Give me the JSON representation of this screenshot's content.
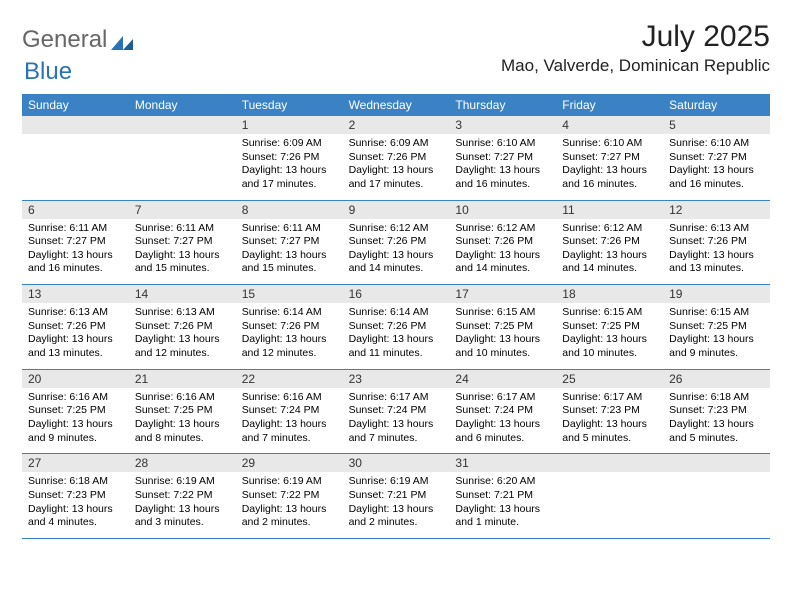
{
  "logo": {
    "part1": "General",
    "part2": "Blue"
  },
  "title": "July 2025",
  "location": "Mao, Valverde, Dominican Republic",
  "colors": {
    "header_bg": "#3b82c4",
    "header_text": "#ffffff",
    "daynum_bg": "#e8e8e8",
    "week_border": "#3b82c4",
    "background": "#ffffff",
    "text": "#000000"
  },
  "day_names": [
    "Sunday",
    "Monday",
    "Tuesday",
    "Wednesday",
    "Thursday",
    "Friday",
    "Saturday"
  ],
  "weeks": [
    [
      {
        "n": "",
        "sunrise": "",
        "sunset": "",
        "daylight": ""
      },
      {
        "n": "",
        "sunrise": "",
        "sunset": "",
        "daylight": ""
      },
      {
        "n": "1",
        "sunrise": "Sunrise: 6:09 AM",
        "sunset": "Sunset: 7:26 PM",
        "daylight": "Daylight: 13 hours and 17 minutes."
      },
      {
        "n": "2",
        "sunrise": "Sunrise: 6:09 AM",
        "sunset": "Sunset: 7:26 PM",
        "daylight": "Daylight: 13 hours and 17 minutes."
      },
      {
        "n": "3",
        "sunrise": "Sunrise: 6:10 AM",
        "sunset": "Sunset: 7:27 PM",
        "daylight": "Daylight: 13 hours and 16 minutes."
      },
      {
        "n": "4",
        "sunrise": "Sunrise: 6:10 AM",
        "sunset": "Sunset: 7:27 PM",
        "daylight": "Daylight: 13 hours and 16 minutes."
      },
      {
        "n": "5",
        "sunrise": "Sunrise: 6:10 AM",
        "sunset": "Sunset: 7:27 PM",
        "daylight": "Daylight: 13 hours and 16 minutes."
      }
    ],
    [
      {
        "n": "6",
        "sunrise": "Sunrise: 6:11 AM",
        "sunset": "Sunset: 7:27 PM",
        "daylight": "Daylight: 13 hours and 16 minutes."
      },
      {
        "n": "7",
        "sunrise": "Sunrise: 6:11 AM",
        "sunset": "Sunset: 7:27 PM",
        "daylight": "Daylight: 13 hours and 15 minutes."
      },
      {
        "n": "8",
        "sunrise": "Sunrise: 6:11 AM",
        "sunset": "Sunset: 7:27 PM",
        "daylight": "Daylight: 13 hours and 15 minutes."
      },
      {
        "n": "9",
        "sunrise": "Sunrise: 6:12 AM",
        "sunset": "Sunset: 7:26 PM",
        "daylight": "Daylight: 13 hours and 14 minutes."
      },
      {
        "n": "10",
        "sunrise": "Sunrise: 6:12 AM",
        "sunset": "Sunset: 7:26 PM",
        "daylight": "Daylight: 13 hours and 14 minutes."
      },
      {
        "n": "11",
        "sunrise": "Sunrise: 6:12 AM",
        "sunset": "Sunset: 7:26 PM",
        "daylight": "Daylight: 13 hours and 14 minutes."
      },
      {
        "n": "12",
        "sunrise": "Sunrise: 6:13 AM",
        "sunset": "Sunset: 7:26 PM",
        "daylight": "Daylight: 13 hours and 13 minutes."
      }
    ],
    [
      {
        "n": "13",
        "sunrise": "Sunrise: 6:13 AM",
        "sunset": "Sunset: 7:26 PM",
        "daylight": "Daylight: 13 hours and 13 minutes."
      },
      {
        "n": "14",
        "sunrise": "Sunrise: 6:13 AM",
        "sunset": "Sunset: 7:26 PM",
        "daylight": "Daylight: 13 hours and 12 minutes."
      },
      {
        "n": "15",
        "sunrise": "Sunrise: 6:14 AM",
        "sunset": "Sunset: 7:26 PM",
        "daylight": "Daylight: 13 hours and 12 minutes."
      },
      {
        "n": "16",
        "sunrise": "Sunrise: 6:14 AM",
        "sunset": "Sunset: 7:26 PM",
        "daylight": "Daylight: 13 hours and 11 minutes."
      },
      {
        "n": "17",
        "sunrise": "Sunrise: 6:15 AM",
        "sunset": "Sunset: 7:25 PM",
        "daylight": "Daylight: 13 hours and 10 minutes."
      },
      {
        "n": "18",
        "sunrise": "Sunrise: 6:15 AM",
        "sunset": "Sunset: 7:25 PM",
        "daylight": "Daylight: 13 hours and 10 minutes."
      },
      {
        "n": "19",
        "sunrise": "Sunrise: 6:15 AM",
        "sunset": "Sunset: 7:25 PM",
        "daylight": "Daylight: 13 hours and 9 minutes."
      }
    ],
    [
      {
        "n": "20",
        "sunrise": "Sunrise: 6:16 AM",
        "sunset": "Sunset: 7:25 PM",
        "daylight": "Daylight: 13 hours and 9 minutes."
      },
      {
        "n": "21",
        "sunrise": "Sunrise: 6:16 AM",
        "sunset": "Sunset: 7:25 PM",
        "daylight": "Daylight: 13 hours and 8 minutes."
      },
      {
        "n": "22",
        "sunrise": "Sunrise: 6:16 AM",
        "sunset": "Sunset: 7:24 PM",
        "daylight": "Daylight: 13 hours and 7 minutes."
      },
      {
        "n": "23",
        "sunrise": "Sunrise: 6:17 AM",
        "sunset": "Sunset: 7:24 PM",
        "daylight": "Daylight: 13 hours and 7 minutes."
      },
      {
        "n": "24",
        "sunrise": "Sunrise: 6:17 AM",
        "sunset": "Sunset: 7:24 PM",
        "daylight": "Daylight: 13 hours and 6 minutes."
      },
      {
        "n": "25",
        "sunrise": "Sunrise: 6:17 AM",
        "sunset": "Sunset: 7:23 PM",
        "daylight": "Daylight: 13 hours and 5 minutes."
      },
      {
        "n": "26",
        "sunrise": "Sunrise: 6:18 AM",
        "sunset": "Sunset: 7:23 PM",
        "daylight": "Daylight: 13 hours and 5 minutes."
      }
    ],
    [
      {
        "n": "27",
        "sunrise": "Sunrise: 6:18 AM",
        "sunset": "Sunset: 7:23 PM",
        "daylight": "Daylight: 13 hours and 4 minutes."
      },
      {
        "n": "28",
        "sunrise": "Sunrise: 6:19 AM",
        "sunset": "Sunset: 7:22 PM",
        "daylight": "Daylight: 13 hours and 3 minutes."
      },
      {
        "n": "29",
        "sunrise": "Sunrise: 6:19 AM",
        "sunset": "Sunset: 7:22 PM",
        "daylight": "Daylight: 13 hours and 2 minutes."
      },
      {
        "n": "30",
        "sunrise": "Sunrise: 6:19 AM",
        "sunset": "Sunset: 7:21 PM",
        "daylight": "Daylight: 13 hours and 2 minutes."
      },
      {
        "n": "31",
        "sunrise": "Sunrise: 6:20 AM",
        "sunset": "Sunset: 7:21 PM",
        "daylight": "Daylight: 13 hours and 1 minute."
      },
      {
        "n": "",
        "sunrise": "",
        "sunset": "",
        "daylight": ""
      },
      {
        "n": "",
        "sunrise": "",
        "sunset": "",
        "daylight": ""
      }
    ]
  ]
}
